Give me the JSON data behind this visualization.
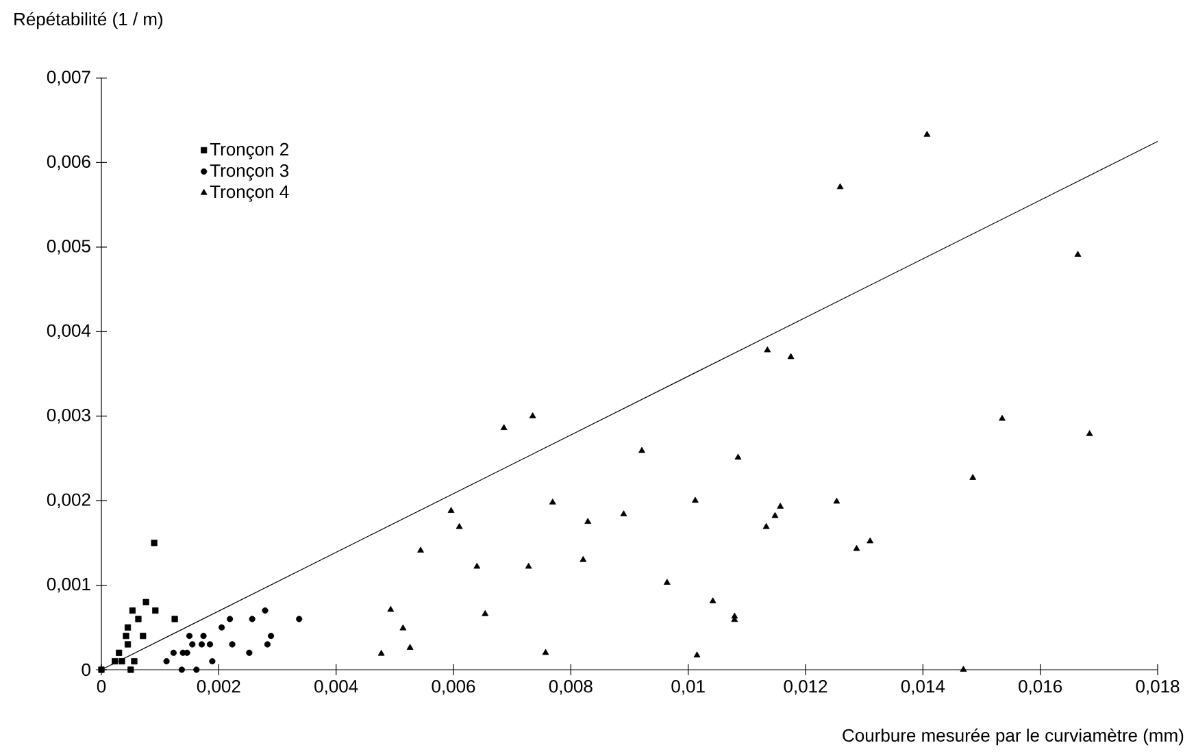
{
  "chart_data": {
    "type": "scatter",
    "xlabel": "Courbure mesurée par le curviamètre (mm)",
    "ylabel": "Répétabilité (1 / m)",
    "xlim": [
      0,
      0.018
    ],
    "ylim": [
      0,
      0.007
    ],
    "xticks": [
      0,
      {
        "value": 0.002,
        "label": "0,002"
      },
      {
        "value": 0.004,
        "label": "0,004"
      },
      {
        "value": 0.006,
        "label": "0,006"
      },
      {
        "value": 0.008,
        "label": "0,008"
      },
      {
        "value": 0.01,
        "label": "0,01"
      },
      {
        "value": 0.012,
        "label": "0,012"
      },
      {
        "value": 0.014,
        "label": "0,014"
      },
      {
        "value": 0.016,
        "label": "0,016"
      },
      {
        "value": 0.018,
        "label": "0,018"
      }
    ],
    "yticks": [
      0,
      {
        "value": 0.001,
        "label": "0,001"
      },
      {
        "value": 0.002,
        "label": "0,002"
      },
      {
        "value": 0.003,
        "label": "0,003"
      },
      {
        "value": 0.004,
        "label": "0,004"
      },
      {
        "value": 0.005,
        "label": "0,005"
      },
      {
        "value": 0.006,
        "label": "0,006"
      },
      {
        "value": 0.007,
        "label": "0,007"
      }
    ],
    "grid": false,
    "legend": "top left",
    "series": [
      {
        "name": "Tronçon 2",
        "color": "#000000",
        "marker": "square",
        "x": [
          0,
          0.0009,
          0.00076,
          0.00092,
          0.00053,
          0.00063,
          0.00045,
          0.00071,
          0.00042,
          0.00125,
          0.0003,
          0.00045,
          0.00056,
          0.00023,
          0.00035,
          0.0005
        ],
        "values": [
          0,
          0.0015,
          0.0008,
          0.0007,
          0.0007,
          0.0006,
          0.0005,
          0.0004,
          0.0004,
          0.0006,
          0.0002,
          0.0003,
          0.0001,
          0.0001,
          0.0001,
          0
        ]
      },
      {
        "name": "Tronçon 3",
        "color": "#000000",
        "marker": "circle",
        "x": [
          0.00205,
          0.00219,
          0.00279,
          0.00257,
          0.00337,
          0.00223,
          0.00289,
          0.00283,
          0.00252,
          0.00189,
          0.00174,
          0.0015,
          0.00155,
          0.00139,
          0.00123,
          0.00111,
          0.00137,
          0.00162,
          0.00185,
          0.00171,
          0.00146
        ],
        "values": [
          0.0005,
          0.0006,
          0.0007,
          0.0006,
          0.0006,
          0.0003,
          0.0004,
          0.0003,
          0.0002,
          0.0001,
          0.0004,
          0.0004,
          0.0003,
          0.0002,
          0.0002,
          0.0001,
          0,
          0,
          0.0003,
          0.0003,
          0.0002
        ]
      },
      {
        "name": "Tronçon 4",
        "color": "#000000",
        "marker": "triangle",
        "x": [
          0.00596,
          0.0061,
          0.00544,
          0.0064,
          0.00493,
          0.00514,
          0.00526,
          0.00477,
          0.00654,
          0.00686,
          0.00735,
          0.00921,
          0.01085,
          0.01135,
          0.01175,
          0.00769,
          0.00829,
          0.0089,
          0.01012,
          0.01157,
          0.01148,
          0.01133,
          0.00728,
          0.00821,
          0.00964,
          0.01042,
          0.01079,
          0.01079,
          0.00757,
          0.01015,
          0.01407,
          0.01259,
          0.01664,
          0.01535,
          0.01684,
          0.01485,
          0.01253,
          0.01287,
          0.0131,
          0.01469
        ],
        "values": [
          0.00188,
          0.00169,
          0.00141,
          0.00122,
          0.00071,
          0.00049,
          0.00026,
          0.00019,
          0.00066,
          0.00286,
          0.003,
          0.00259,
          0.00251,
          0.00378,
          0.0037,
          0.00198,
          0.00175,
          0.00184,
          0.002,
          0.00193,
          0.00182,
          0.00169,
          0.00122,
          0.0013,
          0.00103,
          0.00081,
          0.00063,
          0.00059,
          0.0002,
          0.00017,
          0.00633,
          0.00571,
          0.00491,
          0.00297,
          0.00279,
          0.00227,
          0.00199,
          0.00143,
          0.00152,
          0
        ]
      },
      {
        "type": "line",
        "color": "#000000",
        "x": [
          0,
          0.018
        ],
        "values": [
          0,
          0.00625
        ]
      }
    ]
  }
}
